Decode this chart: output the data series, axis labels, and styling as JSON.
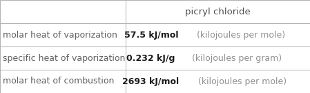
{
  "title": "picryl chloride",
  "rows": [
    {
      "label": "molar heat of vaporization",
      "value_bold": "57.5 kJ/mol",
      "value_normal": " (kilojoules per mole)"
    },
    {
      "label": "specific heat of vaporization",
      "value_bold": "0.232 kJ/g",
      "value_normal": " (kilojoules per gram)"
    },
    {
      "label": "molar heat of combustion",
      "value_bold": "2693 kJ/mol",
      "value_normal": " (kilojoules per mole)"
    }
  ],
  "col_split": 0.405,
  "background_color": "#ffffff",
  "border_color": "#b0b0b0",
  "header_text_color": "#505050",
  "label_text_color": "#606060",
  "value_bold_color": "#1a1a1a",
  "value_normal_color": "#909090",
  "title_fontsize": 9.5,
  "label_fontsize": 9,
  "value_fontsize": 9
}
